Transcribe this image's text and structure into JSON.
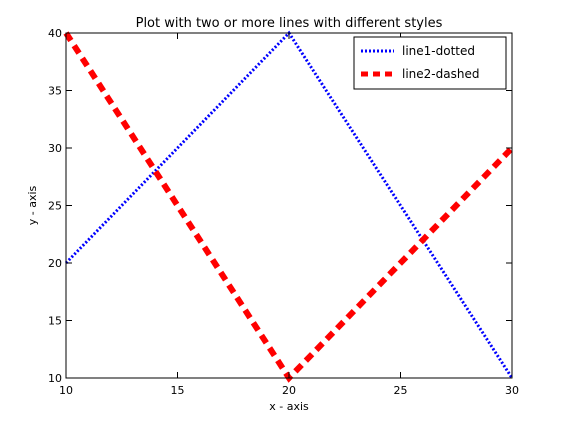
{
  "chart_data": {
    "type": "line",
    "title": "Plot with two or more lines with different styles",
    "xlabel": "x - axis",
    "ylabel": "y - axis",
    "xlim": [
      10,
      30
    ],
    "ylim": [
      10,
      40
    ],
    "xticks": [
      10,
      15,
      20,
      25,
      30
    ],
    "yticks": [
      10,
      15,
      20,
      25,
      30,
      35,
      40
    ],
    "xtick_labels": [
      "10",
      "15",
      "20",
      "25",
      "30"
    ],
    "ytick_labels": [
      "10",
      "15",
      "20",
      "25",
      "30",
      "35",
      "40"
    ],
    "grid": false,
    "legend_position": "top-right",
    "series": [
      {
        "name": "line1-dotted",
        "x": [
          10,
          20,
          30
        ],
        "y": [
          20,
          40,
          10
        ],
        "color": "#0000ff",
        "style": "dotted"
      },
      {
        "name": "line2-dashed",
        "x": [
          10,
          20,
          30
        ],
        "y": [
          40,
          10,
          30
        ],
        "color": "#ff0000",
        "style": "dashed"
      }
    ]
  }
}
